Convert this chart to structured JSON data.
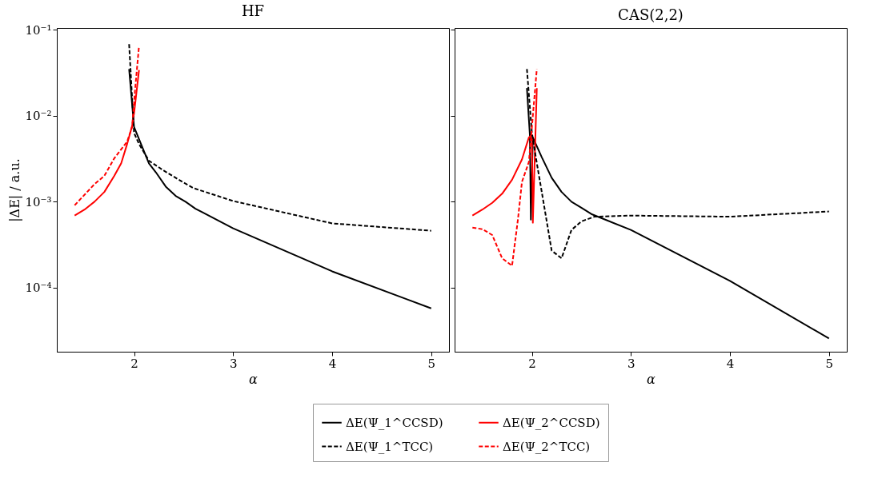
{
  "chart_data": [
    {
      "type": "line",
      "title": "HF",
      "xlabel": "α",
      "ylabel": "|ΔE| / a.u.",
      "log": "y",
      "legend": "bottom",
      "grid": false,
      "xlim": [
        1.22,
        5.18
      ],
      "xticks": [
        2,
        3,
        4,
        5
      ],
      "ylim": [
        1.8e-05,
        0.105
      ],
      "yticks": [
        {
          "value": 0.0001,
          "label": "10⁻⁴"
        },
        {
          "value": 0.001,
          "label": "10⁻³"
        },
        {
          "value": 0.01,
          "label": "10⁻²"
        },
        {
          "value": 0.1,
          "label": "10⁻¹"
        }
      ],
      "series": [
        {
          "name": "ΔE(Ψ_1^CCSD)",
          "color": "#000000",
          "line_style": "solid",
          "x": [
            1.95,
            2.0,
            2.15,
            2.22,
            2.32,
            2.42,
            2.52,
            2.62,
            3,
            4,
            5
          ],
          "values": [
            0.035,
            0.0074,
            0.0028,
            0.0022,
            0.0015,
            0.00117,
            0.001,
            0.00083,
            0.00049,
            0.000155,
            5.75e-05
          ]
        },
        {
          "name": "ΔE(Ψ_2^CCSD)",
          "color": "#ff0000",
          "line_style": "solid",
          "x": [
            1.4,
            1.5,
            1.6,
            1.7,
            1.8,
            1.87,
            1.93,
            1.98,
            2.0,
            2.05
          ],
          "values": [
            0.00069,
            0.00081,
            0.001,
            0.0013,
            0.002,
            0.0028,
            0.0047,
            0.0076,
            0.0107,
            0.034
          ]
        },
        {
          "name": "ΔE(Ψ_1^TCC)",
          "color": "#000000",
          "line_style": "dashed",
          "x": [
            1.95,
            2.0,
            2.05,
            2.15,
            2.3,
            2.5,
            2.6,
            3,
            4,
            5
          ],
          "values": [
            0.068,
            0.0063,
            0.0047,
            0.003,
            0.0023,
            0.00167,
            0.00144,
            0.00102,
            0.00056,
            0.00046
          ]
        },
        {
          "name": "ΔE(Ψ_2^TCC)",
          "color": "#ff0000",
          "line_style": "dashed",
          "x": [
            1.4,
            1.6,
            1.7,
            1.8,
            1.93,
            1.98,
            2.01,
            2.05
          ],
          "values": [
            0.00091,
            0.0016,
            0.002,
            0.0032,
            0.005,
            0.0074,
            0.02,
            0.065
          ]
        }
      ]
    },
    {
      "type": "line",
      "title": "CAS(2,2)",
      "xlabel": "α",
      "log": "y",
      "legend": "bottom",
      "grid": false,
      "tick_labels": "x",
      "xlim": [
        1.22,
        5.18
      ],
      "xticks": [
        2,
        3,
        4,
        5
      ],
      "ylim": [
        1.8e-05,
        0.105
      ],
      "yticks": [
        {
          "value": 0.0001,
          "label": null
        },
        {
          "value": 0.001,
          "label": null
        },
        {
          "value": 0.01,
          "label": null
        },
        {
          "value": 0.1,
          "label": null
        }
      ],
      "series": [
        {
          "name": "ΔE(Ψ_1^CCSD)",
          "color": "#000000",
          "line_style": "solid",
          "x": [
            1.95,
            1.98,
            1.99,
            2.01,
            2.1,
            2.2,
            2.3,
            2.4,
            2.5,
            2.6,
            3,
            4,
            5
          ],
          "values": [
            0.021,
            0.006,
            0.00062,
            0.0056,
            0.0033,
            0.0019,
            0.0013,
            0.001,
            0.00085,
            0.00072,
            0.00047,
            0.00012,
            2.57e-05
          ]
        },
        {
          "name": "ΔE(Ψ_2^CCSD)",
          "color": "#ff0000",
          "line_style": "solid",
          "x": [
            1.4,
            1.5,
            1.6,
            1.7,
            1.8,
            1.9,
            1.97,
            2.0,
            2.01,
            2.05
          ],
          "values": [
            0.00069,
            0.00081,
            0.00097,
            0.00124,
            0.0018,
            0.0031,
            0.0056,
            0.006,
            0.00057,
            0.021
          ]
        },
        {
          "name": "ΔE(Ψ_1^TCC)",
          "color": "#000000",
          "line_style": "dashed",
          "x": [
            1.95,
            2.0,
            2.04,
            2.1,
            2.2,
            2.3,
            2.4,
            2.5,
            2.63,
            3,
            4,
            5
          ],
          "values": [
            0.035,
            0.0064,
            0.0033,
            0.0013,
            0.00027,
            0.00022,
            0.00047,
            0.00059,
            0.00067,
            0.00069,
            0.00067,
            0.00077
          ]
        },
        {
          "name": "ΔE(Ψ_2^TCC)",
          "color": "#ff0000",
          "line_style": "dashed",
          "x": [
            1.4,
            1.5,
            1.6,
            1.7,
            1.8,
            1.86,
            1.9,
            1.97,
            2.0,
            2.05
          ],
          "values": [
            0.0005,
            0.00048,
            0.00041,
            0.00022,
            0.00018,
            0.00063,
            0.0017,
            0.0029,
            0.0073,
            0.035
          ]
        }
      ]
    }
  ]
}
